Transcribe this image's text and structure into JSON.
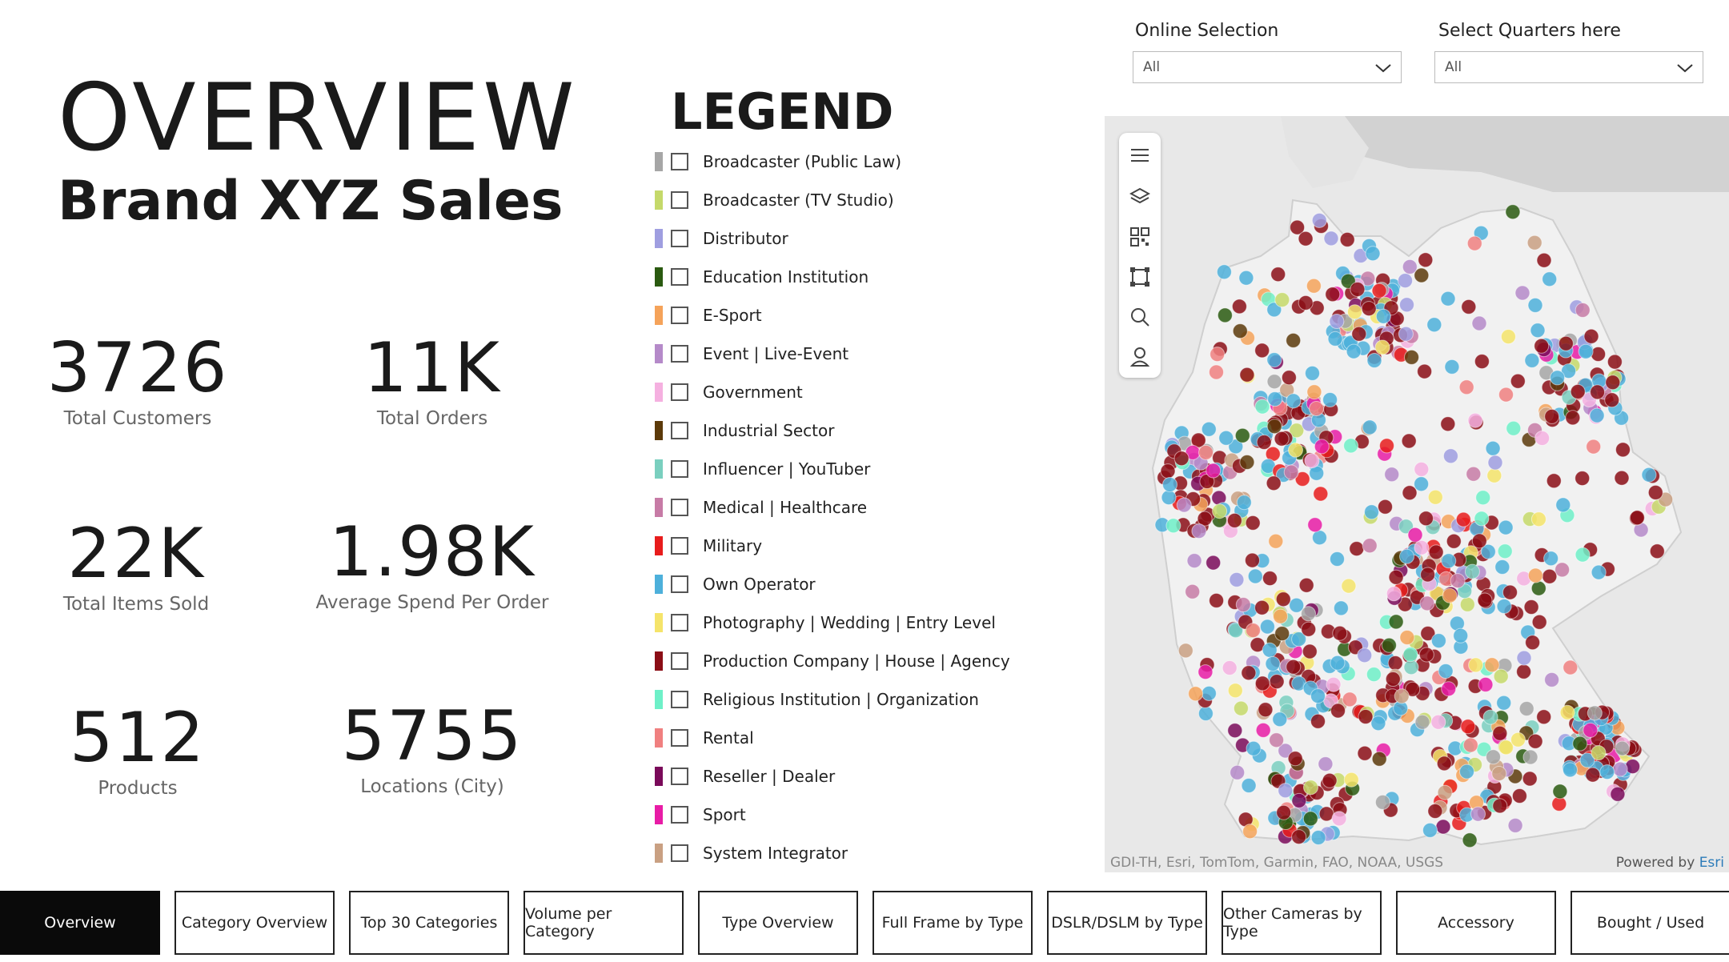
{
  "header": {
    "title": "OVERVIEW",
    "subtitle": "Brand XYZ Sales"
  },
  "kpis": [
    {
      "value": "3726",
      "label": "Total Customers"
    },
    {
      "value": "11K",
      "label": "Total Orders"
    },
    {
      "value": "22K",
      "label": "Total Items Sold"
    },
    {
      "value": "1.98K",
      "label": "Average Spend Per Order"
    },
    {
      "value": "512",
      "label": "Products"
    },
    {
      "value": "5755",
      "label": "Locations (City)"
    }
  ],
  "legend": {
    "title": "LEGEND",
    "items": [
      {
        "label": "Broadcaster (Public Law)",
        "color": "#a6a6a6"
      },
      {
        "label": "Broadcaster (TV Studio)",
        "color": "#c5d96a"
      },
      {
        "label": "Distributor",
        "color": "#9f9ee0"
      },
      {
        "label": "Education Institution",
        "color": "#2a5a10"
      },
      {
        "label": "E-Sport",
        "color": "#f5a35a"
      },
      {
        "label": "Event | Live-Event",
        "color": "#b58ac9"
      },
      {
        "label": "Government",
        "color": "#f5b0e0"
      },
      {
        "label": "Industrial Sector",
        "color": "#5c3a0a"
      },
      {
        "label": "Influencer | YouTuber",
        "color": "#7acfbf"
      },
      {
        "label": "Medical | Healthcare",
        "color": "#c77ba6"
      },
      {
        "label": "Military",
        "color": "#e81c1c"
      },
      {
        "label": "Own Operator",
        "color": "#4db0db"
      },
      {
        "label": "Photography | Wedding | Entry Level",
        "color": "#f5e46a"
      },
      {
        "label": "Production Company | House | Agency",
        "color": "#8b0e16"
      },
      {
        "label": "Religious Institution | Organization",
        "color": "#6ef0c8"
      },
      {
        "label": "Rental",
        "color": "#f08080"
      },
      {
        "label": "Reseller | Dealer",
        "color": "#7a0a5a"
      },
      {
        "label": "Sport",
        "color": "#e81ca6"
      },
      {
        "label": "System Integrator",
        "color": "#c9a082"
      }
    ]
  },
  "filters": {
    "online": {
      "label": "Online Selection",
      "value": "All"
    },
    "quarters": {
      "label": "Select Quarters here",
      "value": "All"
    }
  },
  "map": {
    "attribution": "GDI-TH, Esri, TomTom, Garmin, FAO, NOAA, USGS",
    "powered_prefix": "Powered by",
    "powered_brand": "Esri",
    "toolbar": [
      "menu-icon",
      "layers-icon",
      "qr-code-icon",
      "select-area-icon",
      "search-icon",
      "pin-person-icon"
    ]
  },
  "tabs": [
    {
      "label": "Overview",
      "active": true
    },
    {
      "label": "Category Overview"
    },
    {
      "label": "Top 30 Categories"
    },
    {
      "label": "Volume per Category"
    },
    {
      "label": "Type Overview"
    },
    {
      "label": "Full Frame by Type"
    },
    {
      "label": "DSLR/DSLM by Type"
    },
    {
      "label": "Other Cameras by Type"
    },
    {
      "label": "Accessory"
    },
    {
      "label": "Bought / Used"
    }
  ]
}
